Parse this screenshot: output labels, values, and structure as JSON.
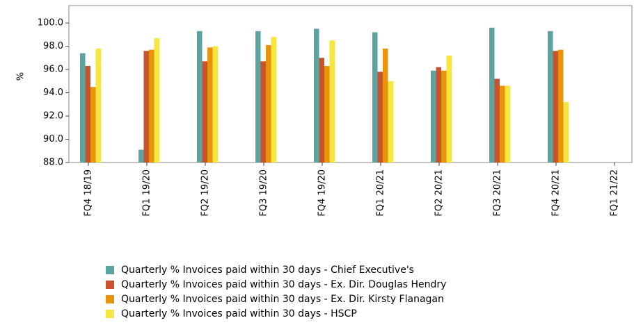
{
  "chart_data": {
    "type": "bar",
    "y_label": "%",
    "categories": [
      "FQ4 18/19",
      "FQ1 19/20",
      "FQ2 19/20",
      "FQ3 19/20",
      "FQ4 19/20",
      "FQ1 20/21",
      "FQ2 20/21",
      "FQ3 20/21",
      "FQ4 20/21",
      "FQ1 21/22"
    ],
    "series": [
      {
        "name": "Quarterly % Invoices paid within 30 days - Chief Executive's",
        "color": "#5aa5a0",
        "values": [
          97.4,
          89.1,
          99.3,
          99.3,
          99.5,
          99.2,
          95.9,
          99.6,
          99.3,
          null
        ]
      },
      {
        "name": "Quarterly % Invoices paid within 30 days - Ex. Dir. Douglas Hendry",
        "color": "#c8532e",
        "values": [
          96.3,
          97.6,
          96.7,
          96.7,
          97.0,
          95.8,
          96.2,
          95.2,
          97.6,
          null
        ]
      },
      {
        "name": "Quarterly % Invoices paid within 30 days - Ex. Dir. Kirsty Flanagan",
        "color": "#e8930c",
        "values": [
          94.5,
          97.7,
          97.9,
          98.1,
          96.3,
          97.8,
          95.9,
          94.6,
          97.7,
          null
        ]
      },
      {
        "name": "Quarterly % Invoices paid within 30 days - HSCP",
        "color": "#f5e642",
        "values": [
          97.8,
          98.7,
          98.0,
          98.8,
          98.5,
          95.0,
          97.2,
          94.6,
          93.2,
          null
        ]
      }
    ],
    "ylim": [
      88,
      101.5
    ],
    "yticks": [
      {
        "value": 88,
        "label": "88.0"
      },
      {
        "value": 90,
        "label": "90.0"
      },
      {
        "value": 92,
        "label": "92.0"
      },
      {
        "value": 94,
        "label": "94.0"
      },
      {
        "value": 96,
        "label": "96.0"
      },
      {
        "value": 98,
        "label": "98.0"
      },
      {
        "value": 100,
        "label": "100.0"
      }
    ],
    "grid": false
  }
}
